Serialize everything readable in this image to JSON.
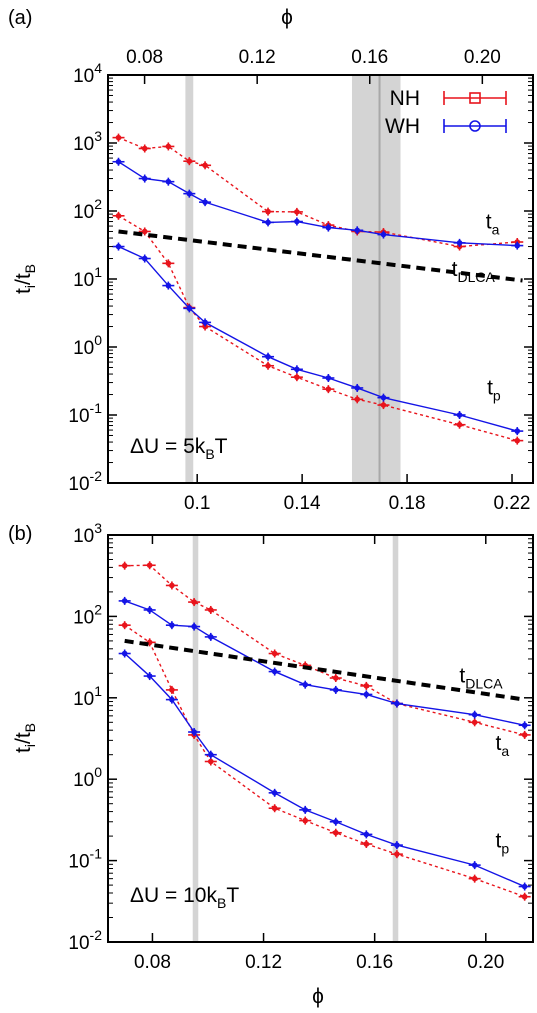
{
  "chart_data": [
    {
      "panel": "(a)",
      "type": "line",
      "annotation": {
        "main": "ΔU = 5k",
        "sub": "B",
        "tail": "T"
      },
      "ylabel": {
        "main": "t",
        "sub": "i",
        "mid": "/t",
        "sub2": "B"
      },
      "y_scale": "log",
      "ylim": [
        0.01,
        10000
      ],
      "y_ticks": [
        {
          "value": 0.01,
          "base": "10",
          "exp": "-2"
        },
        {
          "value": 0.1,
          "base": "10",
          "exp": "-1"
        },
        {
          "value": 1,
          "base": "10",
          "exp": "0"
        },
        {
          "value": 10,
          "base": "10",
          "exp": "1"
        },
        {
          "value": 100,
          "base": "10",
          "exp": "2"
        },
        {
          "value": 1000,
          "base": "10",
          "exp": "3"
        },
        {
          "value": 10000,
          "base": "10",
          "exp": "4"
        }
      ],
      "top_axis": {
        "label": "ϕ",
        "ticks": [
          "0.08",
          "0.12",
          "0.16",
          "0.20"
        ],
        "tick_values": [
          0.08,
          0.12,
          0.16,
          0.2
        ],
        "range": [
          0.067,
          0.218
        ]
      },
      "bottom_axis": {
        "label": "",
        "ticks": [
          "0.1",
          "0.14",
          "0.18",
          "0.22"
        ],
        "tick_values": [
          0.1,
          0.14,
          0.18,
          0.22
        ],
        "range": [
          0.066,
          0.228
        ]
      },
      "legend": {
        "position": "top-right",
        "entries": [
          {
            "name": "NH",
            "color": "#e8141c",
            "marker": "square"
          },
          {
            "name": "WH",
            "color": "#1414e6",
            "marker": "circle"
          }
        ]
      },
      "bands": [
        {
          "x": [
            0.0955,
            0.0985
          ],
          "type": "narrow"
        },
        {
          "x": [
            0.159,
            0.1775
          ],
          "type": "wide",
          "line": 0.1695
        }
      ],
      "series": [
        {
          "name": "NH t_a",
          "color": "#e8141c",
          "style": "dotted",
          "x": [
            0.07,
            0.08,
            0.089,
            0.097,
            0.103,
            0.127,
            0.138,
            0.15,
            0.161,
            0.171,
            0.2,
            0.222
          ],
          "y": [
            1200,
            830,
            890,
            540,
            470,
            98,
            97,
            62,
            50,
            49,
            30,
            35
          ]
        },
        {
          "name": "WH t_a",
          "color": "#1414e6",
          "style": "solid",
          "x": [
            0.07,
            0.08,
            0.089,
            0.097,
            0.103,
            0.127,
            0.138,
            0.15,
            0.161,
            0.171,
            0.2,
            0.222
          ],
          "y": [
            530,
            300,
            270,
            180,
            135,
            68,
            70,
            57,
            52,
            45,
            34,
            31
          ]
        },
        {
          "name": "NH t_p",
          "color": "#e8141c",
          "style": "dotted",
          "x": [
            0.07,
            0.08,
            0.089,
            0.097,
            0.103,
            0.127,
            0.138,
            0.15,
            0.161,
            0.171,
            0.2,
            0.222
          ],
          "y": [
            85,
            50,
            17,
            3.8,
            2.0,
            0.53,
            0.36,
            0.24,
            0.17,
            0.14,
            0.072,
            0.042
          ]
        },
        {
          "name": "WH t_p",
          "color": "#1414e6",
          "style": "solid",
          "x": [
            0.07,
            0.08,
            0.089,
            0.097,
            0.103,
            0.127,
            0.138,
            0.15,
            0.161,
            0.171,
            0.2,
            0.222
          ],
          "y": [
            30,
            20,
            8.0,
            3.7,
            2.3,
            0.72,
            0.47,
            0.35,
            0.25,
            0.18,
            0.1,
            0.058
          ]
        },
        {
          "name": "t_DLCA",
          "color": "#000000",
          "style": "dashed",
          "x": [
            0.07,
            0.224
          ],
          "y": [
            50,
            9.5
          ]
        }
      ],
      "curve_labels": [
        {
          "main": "t",
          "sub": "a",
          "x": 0.21,
          "y": 55
        },
        {
          "main": "t",
          "sub": "DLCA",
          "x": 0.197,
          "y": 11
        },
        {
          "main": "t",
          "sub": "p",
          "x": 0.2105,
          "y": 0.2
        }
      ]
    },
    {
      "panel": "(b)",
      "type": "line",
      "annotation": {
        "main": "ΔU = 10k",
        "sub": "B",
        "tail": "T"
      },
      "ylabel": {
        "main": "t",
        "sub": "i",
        "mid": "/t",
        "sub2": "B"
      },
      "xlabel": "ϕ",
      "y_scale": "log",
      "ylim": [
        0.01,
        1000
      ],
      "y_ticks": [
        {
          "value": 0.01,
          "base": "10",
          "exp": "-2"
        },
        {
          "value": 0.1,
          "base": "10",
          "exp": "-1"
        },
        {
          "value": 1,
          "base": "10",
          "exp": "0"
        },
        {
          "value": 10,
          "base": "10",
          "exp": "1"
        },
        {
          "value": 100,
          "base": "10",
          "exp": "2"
        },
        {
          "value": 1000,
          "base": "10",
          "exp": "3"
        }
      ],
      "bottom_axis": {
        "label": "ϕ",
        "ticks": [
          "0.08",
          "0.12",
          "0.16",
          "0.20"
        ],
        "tick_values": [
          0.08,
          0.12,
          0.16,
          0.2
        ],
        "range": [
          0.064,
          0.217
        ]
      },
      "bands": [
        {
          "x": [
            0.0945,
            0.0965
          ],
          "type": "narrow"
        },
        {
          "x": [
            0.1665,
            0.1685
          ],
          "type": "narrow"
        }
      ],
      "series": [
        {
          "name": "NH t_a",
          "color": "#e8141c",
          "style": "dotted",
          "x": [
            0.07,
            0.079,
            0.087,
            0.095,
            0.101,
            0.124,
            0.135,
            0.146,
            0.157,
            0.168,
            0.196,
            0.214
          ],
          "y": [
            420,
            425,
            240,
            150,
            120,
            35,
            25,
            17.5,
            14,
            8.5,
            5.0,
            3.5
          ]
        },
        {
          "name": "WH t_a",
          "color": "#1414e6",
          "style": "solid",
          "x": [
            0.07,
            0.079,
            0.087,
            0.095,
            0.101,
            0.124,
            0.135,
            0.146,
            0.157,
            0.168,
            0.196,
            0.214
          ],
          "y": [
            155,
            120,
            78,
            75,
            56,
            21,
            14.5,
            12.5,
            11,
            8.5,
            6.2,
            4.6
          ]
        },
        {
          "name": "NH t_p",
          "color": "#e8141c",
          "style": "dotted",
          "x": [
            0.07,
            0.079,
            0.087,
            0.095,
            0.101,
            0.124,
            0.135,
            0.146,
            0.157,
            0.168,
            0.196,
            0.214
          ],
          "y": [
            78,
            48,
            12.5,
            3.5,
            1.65,
            0.44,
            0.31,
            0.22,
            0.16,
            0.12,
            0.06,
            0.036
          ]
        },
        {
          "name": "WH t_p",
          "color": "#1414e6",
          "style": "solid",
          "x": [
            0.07,
            0.079,
            0.087,
            0.095,
            0.101,
            0.124,
            0.135,
            0.146,
            0.157,
            0.168,
            0.196,
            0.214
          ],
          "y": [
            35,
            18.5,
            9.5,
            3.8,
            2.0,
            0.68,
            0.42,
            0.3,
            0.21,
            0.155,
            0.088,
            0.048
          ]
        },
        {
          "name": "t_DLCA",
          "color": "#000000",
          "style": "dashed",
          "x": [
            0.07,
            0.214
          ],
          "y": [
            50,
            9.5
          ]
        }
      ],
      "curve_labels": [
        {
          "main": "t",
          "sub": "DLCA",
          "x": 0.1905,
          "y": 15.5
        },
        {
          "main": "t",
          "sub": "a",
          "x": 0.2035,
          "y": 2.3
        },
        {
          "main": "t",
          "sub": "p",
          "x": 0.2035,
          "y": 0.145
        }
      ]
    }
  ]
}
